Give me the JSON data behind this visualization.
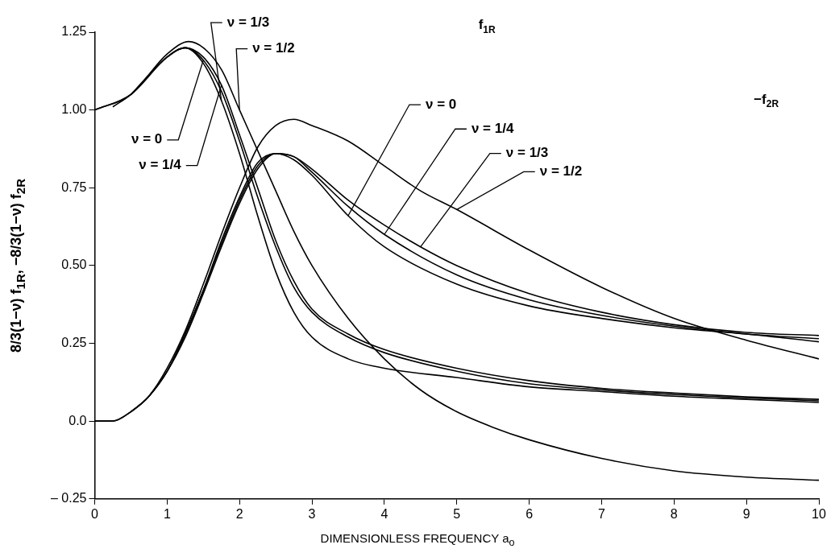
{
  "chart_data": {
    "type": "line",
    "xlabel": "DIMENSIONLESS FREQUENCY a$_{o}$",
    "ylabel": "8/3(1−ν) f$_{1R}$,  −8/3(1−ν) f$_{2R}$",
    "xlim": [
      0,
      10
    ],
    "xticks": [
      0,
      1,
      2,
      3,
      4,
      5,
      6,
      7,
      8,
      9,
      10
    ],
    "ylim": [
      -0.25,
      1.25
    ],
    "yticks": [
      {
        "value": -0.25,
        "label": "– 0.25"
      },
      {
        "value": 0,
        "label": "0.0"
      },
      {
        "value": 0.25,
        "label": "0.25"
      },
      {
        "value": 0.5,
        "label": "0.50"
      },
      {
        "value": 0.75,
        "label": "0.75"
      },
      {
        "value": 1,
        "label": "1.00"
      },
      {
        "value": 1.25,
        "label": "1.25"
      }
    ],
    "grid": false,
    "legend": false,
    "marker": "none",
    "line_style": "solid",
    "series": [
      {
        "color": "#000000",
        "x": [
          0,
          0.5,
          1,
          1.25,
          1.5,
          1.75,
          2,
          2.25,
          2.5,
          2.75,
          3,
          3.5,
          4,
          5,
          6,
          7,
          8,
          9,
          10
        ],
        "values": [
          1,
          1.05,
          1.17,
          1.2,
          1.16,
          1.06,
          0.9,
          0.72,
          0.56,
          0.43,
          0.35,
          0.27,
          0.22,
          0.16,
          0.12,
          0.1,
          0.085,
          0.075,
          0.065
        ]
      },
      {
        "color": "#000000",
        "x": [
          0.25,
          0.5,
          1,
          1.25,
          1.5,
          1.75,
          2,
          2.25,
          2.5,
          2.75,
          3,
          3.5,
          4,
          5,
          6,
          7,
          8,
          9,
          10
        ],
        "values": [
          1.01,
          1.05,
          1.17,
          1.2,
          1.17,
          1.08,
          0.92,
          0.75,
          0.58,
          0.45,
          0.36,
          0.28,
          0.23,
          0.17,
          0.13,
          0.105,
          0.09,
          0.078,
          0.07
        ]
      },
      {
        "color": "#000000",
        "x": [
          0.5,
          1,
          1.25,
          1.5,
          1.75,
          2,
          2.25,
          2.5,
          2.75,
          3,
          3.5,
          4,
          5,
          6,
          7,
          8,
          9,
          10
        ],
        "values": [
          1.05,
          1.17,
          1.2,
          1.15,
          1.03,
          0.86,
          0.66,
          0.48,
          0.35,
          0.27,
          0.2,
          0.17,
          0.14,
          0.11,
          0.095,
          0.08,
          0.07,
          0.06
        ]
      },
      {
        "color": "#000000",
        "x": [
          0,
          0.5,
          1,
          1.3,
          1.5,
          1.75,
          2,
          2.25,
          2.5,
          2.75,
          3,
          3.5,
          4,
          4.5,
          5,
          5.5,
          6,
          7,
          8,
          9,
          10
        ],
        "values": [
          1,
          1.05,
          1.18,
          1.22,
          1.2,
          1.13,
          1,
          0.87,
          0.74,
          0.61,
          0.5,
          0.33,
          0.2,
          0.1,
          0.03,
          -0.02,
          -0.06,
          -0.12,
          -0.16,
          -0.18,
          -0.19
        ]
      },
      {
        "color": "#000000",
        "x": [
          0,
          0.25,
          0.5,
          0.75,
          1,
          1.25,
          1.5,
          1.75,
          2,
          2.25,
          2.5,
          2.75,
          3,
          3.5,
          4,
          5,
          6,
          7,
          8,
          9,
          10
        ],
        "values": [
          0,
          0,
          0.03,
          0.08,
          0.16,
          0.27,
          0.41,
          0.56,
          0.7,
          0.81,
          0.86,
          0.84,
          0.79,
          0.66,
          0.56,
          0.44,
          0.37,
          0.33,
          0.3,
          0.28,
          0.255
        ]
      },
      {
        "color": "#000000",
        "x": [
          0.5,
          0.75,
          1,
          1.25,
          1.5,
          1.75,
          2,
          2.25,
          2.5,
          2.75,
          3,
          3.5,
          4,
          5,
          6,
          7,
          8,
          9,
          10
        ],
        "values": [
          0.03,
          0.08,
          0.16,
          0.28,
          0.42,
          0.57,
          0.71,
          0.82,
          0.86,
          0.85,
          0.8,
          0.69,
          0.6,
          0.47,
          0.39,
          0.34,
          0.305,
          0.28,
          0.265
        ]
      },
      {
        "color": "#000000",
        "x": [
          0.75,
          1,
          1.25,
          1.5,
          1.75,
          2,
          2.25,
          2.5,
          2.75,
          3,
          3.5,
          4,
          4.5,
          5,
          6,
          7,
          8,
          9,
          10
        ],
        "values": [
          0.08,
          0.16,
          0.28,
          0.42,
          0.58,
          0.72,
          0.83,
          0.86,
          0.85,
          0.81,
          0.71,
          0.63,
          0.56,
          0.5,
          0.41,
          0.35,
          0.31,
          0.285,
          0.275
        ]
      },
      {
        "color": "#000000",
        "x": [
          0,
          0.25,
          0.5,
          0.75,
          1,
          1.25,
          1.5,
          1.75,
          2,
          2.25,
          2.5,
          2.75,
          3,
          3.5,
          4,
          4.5,
          5,
          6,
          7,
          8,
          9,
          10
        ],
        "values": [
          0,
          0,
          0.03,
          0.08,
          0.17,
          0.29,
          0.44,
          0.6,
          0.75,
          0.88,
          0.95,
          0.97,
          0.95,
          0.9,
          0.82,
          0.74,
          0.68,
          0.55,
          0.43,
          0.33,
          0.26,
          0.2
        ]
      }
    ],
    "annotations": [
      {
        "text": "ν = 1/3",
        "x": 1.75,
        "y": 1.03
      },
      {
        "text": "ν = 1/2",
        "x": 2,
        "y": 1
      },
      {
        "text": "ν = 0",
        "x": 1.5,
        "y": 1.16
      },
      {
        "text": "ν = 1/4",
        "x": 1.75,
        "y": 1.08
      },
      {
        "text": "ν = 0",
        "x": 3.5,
        "y": 0.66
      },
      {
        "text": "ν = 1/4",
        "x": 4,
        "y": 0.6
      },
      {
        "text": "ν = 1/3",
        "x": 4.5,
        "y": 0.56
      },
      {
        "text": "ν = 1/2",
        "x": 5,
        "y": 0.68
      },
      "f$_{1R}$",
      "−f$_{2R}$"
    ]
  }
}
